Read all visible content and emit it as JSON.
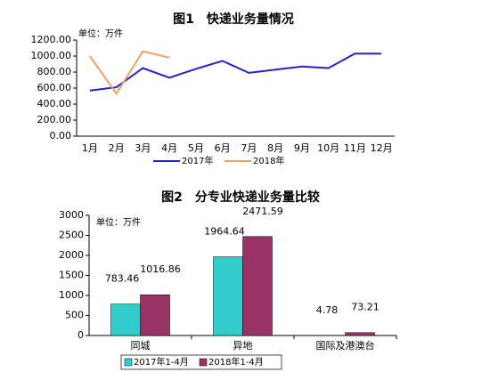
{
  "chart_data": [
    {
      "type": "line",
      "title": "图1　快递业务量情况",
      "annotation": "单位：万件",
      "categories": [
        "1月",
        "2月",
        "3月",
        "4月",
        "5月",
        "6月",
        "7月",
        "8月",
        "9月",
        "10月",
        "11月",
        "12月"
      ],
      "series": [
        {
          "name": "2017年",
          "color": "#2222cc",
          "values": [
            570,
            610,
            850,
            730,
            840,
            940,
            790,
            830,
            870,
            850,
            1030,
            1030
          ]
        },
        {
          "name": "2018年",
          "color": "#f0a060",
          "values": [
            1000,
            530,
            1060,
            980,
            null,
            null,
            null,
            null,
            null,
            null,
            null,
            null
          ]
        }
      ],
      "ylim": [
        0,
        1200
      ],
      "yticks": [
        {
          "value": 0,
          "label": "0.00"
        },
        {
          "value": 200,
          "label": "200.00"
        },
        {
          "value": 400,
          "label": "400.00"
        },
        {
          "value": 600,
          "label": "600.00"
        },
        {
          "value": 800,
          "label": "800.00"
        },
        {
          "value": 1000,
          "label": "1000.00"
        },
        {
          "value": 1200,
          "label": "1200.00"
        }
      ],
      "grid": false,
      "legend": "bottom"
    },
    {
      "type": "bar",
      "title": "图2　分专业快递业务量比较",
      "annotation": "单位：万件",
      "categories": [
        "同城",
        "异地",
        "国际及港澳台"
      ],
      "series": [
        {
          "name": "2017年1-4月",
          "color": "#33cccc",
          "values": [
            783.46,
            1964.64,
            4.78
          ]
        },
        {
          "name": "2018年1-4月",
          "color": "#993366",
          "values": [
            1016.86,
            2471.59,
            73.21
          ]
        }
      ],
      "ylim": [
        0,
        3000
      ],
      "yticks": [
        0,
        500,
        1000,
        1500,
        2000,
        2500,
        3000
      ],
      "grid": false,
      "legend": "bottom"
    }
  ]
}
